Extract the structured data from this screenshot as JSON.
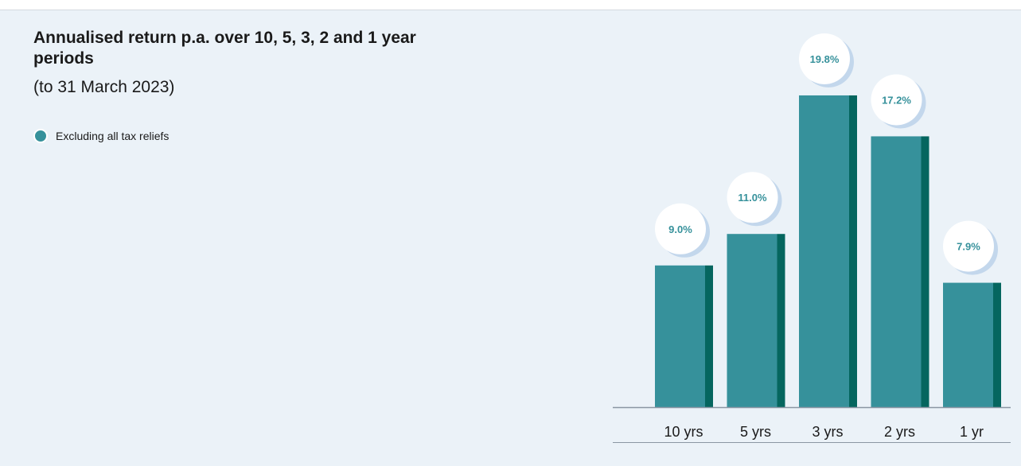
{
  "header": {
    "title": "Annualised return p.a. over 10, 5, 3, 2 and 1 year periods",
    "subtitle": "(to 31 March 2023)"
  },
  "legend": {
    "label": "Excluding all tax reliefs",
    "color": "#36919b"
  },
  "colors": {
    "bar_face": "#36919b",
    "bar_side": "#05665f",
    "value_text": "#36919b",
    "bubble_fill": "#ffffff",
    "bubble_shadow": "#c3d7ec",
    "axis_line": "#8a96a3"
  },
  "chart_data": {
    "type": "bar",
    "categories": [
      "10 yrs",
      "5 yrs",
      "3 yrs",
      "2 yrs",
      "1 yr"
    ],
    "values": [
      9.0,
      11.0,
      19.8,
      17.2,
      7.9
    ],
    "value_labels": [
      "9.0%",
      "11.0%",
      "19.8%",
      "17.2%",
      "7.9%"
    ],
    "series": [
      {
        "name": "Excluding all tax reliefs",
        "values": [
          9.0,
          11.0,
          19.8,
          17.2,
          7.9
        ]
      }
    ],
    "title": "Annualised return p.a. over 10, 5, 3, 2 and 1 year periods",
    "subtitle": "(to 31 March 2023)",
    "ylim": [
      0,
      20
    ],
    "grid": false,
    "legend_position": "top-left"
  }
}
